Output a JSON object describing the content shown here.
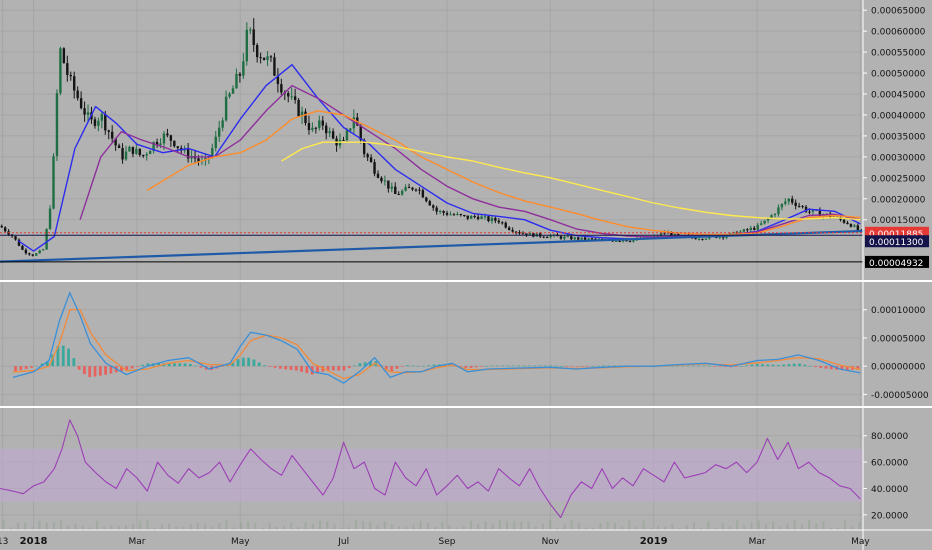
{
  "colors": {
    "background": "#b2b2b2",
    "grid": "#a6a6a6",
    "axis_text": "#141414",
    "candle_up": "#1f6e43",
    "candle_down": "#141414",
    "ma_fast": "#2c2cf0",
    "ma_mid": "#8e2f9c",
    "ma_slow": "#ff8c2a",
    "ma_long": "#ffe94d",
    "trendline": "#1e5aa8",
    "macd_line": "#3a8fd8",
    "signal_line": "#f08a3c",
    "hist_up": "#26a69a",
    "hist_down": "#ef5350",
    "rsi_line": "#9b3fb5",
    "rsi_band": "#c2a8d6",
    "price_tag_red": "#e53935",
    "price_tag_navy": "#14144a",
    "price_tag_black": "#000000"
  },
  "chart_data": [
    {
      "type": "line",
      "panel": "price",
      "note_style": "candlestick with moving averages",
      "ylim": [
        3e-05,
        0.00066
      ],
      "y_ticks": [
        "0.00065000",
        "0.00060000",
        "0.00055000",
        "0.00050000",
        "0.00045000",
        "0.00040000",
        "0.00035000",
        "0.00030000",
        "0.00025000",
        "0.00020000",
        "0.00015000"
      ],
      "y_tick_values": [
        0.00065,
        0.0006,
        0.00055,
        0.0005,
        0.00045,
        0.0004,
        0.00035,
        0.0003,
        0.00025,
        0.0002,
        0.00015
      ],
      "x_ticks": [
        "13",
        "2018",
        "Mar",
        "May",
        "Jul",
        "Sep",
        "Nov",
        "2019",
        "Mar",
        "May"
      ],
      "x_tick_months": [
        -0.6,
        0,
        2,
        4,
        6,
        8,
        10,
        12,
        14,
        16
      ],
      "x_range_months": [
        -0.65,
        16.05
      ],
      "grid": true,
      "close_series": {
        "months": [
          -0.65,
          -0.4,
          -0.2,
          0,
          0.2,
          0.35,
          0.5,
          0.7,
          0.9,
          1.1,
          1.3,
          1.5,
          1.7,
          1.9,
          2.1,
          2.3,
          2.5,
          2.7,
          2.9,
          3.1,
          3.3,
          3.5,
          3.7,
          3.85,
          4.0,
          4.15,
          4.3,
          4.45,
          4.6,
          4.8,
          5.0,
          5.2,
          5.4,
          5.6,
          5.8,
          6.0,
          6.2,
          6.4,
          6.6,
          6.8,
          7.0,
          7.2,
          7.4,
          7.6,
          7.8,
          8.0,
          8.2,
          8.4,
          8.6,
          8.8,
          9.0,
          9.2,
          9.4,
          9.6,
          9.8,
          10.0,
          10.2,
          10.4,
          10.6,
          10.8,
          11.0,
          11.2,
          11.4,
          11.6,
          11.8,
          12.0,
          12.2,
          12.4,
          12.6,
          12.8,
          13.0,
          13.2,
          13.4,
          13.6,
          13.8,
          14.0,
          14.2,
          14.4,
          14.6,
          14.8,
          15.0,
          15.2,
          15.4,
          15.6,
          15.8,
          16.0
        ],
        "values": [
          0.000135,
          0.00011,
          7.5e-05,
          6.5e-05,
          8e-05,
          0.00021,
          0.00056,
          0.00048,
          0.00043,
          0.00038,
          0.0004,
          0.00035,
          0.0003,
          0.00032,
          0.0003,
          0.00033,
          0.00035,
          0.00034,
          0.00031,
          0.0003,
          0.00028,
          0.00033,
          0.00042,
          0.00046,
          0.0005,
          0.0006,
          0.00056,
          0.00054,
          0.00052,
          0.00047,
          0.00043,
          0.0004,
          0.00036,
          0.00038,
          0.00034,
          0.00033,
          0.0004,
          0.00031,
          0.00027,
          0.00024,
          0.00021,
          0.00022,
          0.00023,
          0.0002,
          0.00017,
          0.000165,
          0.00016,
          0.000155,
          0.000158,
          0.00015,
          0.000148,
          0.00013,
          0.00012,
          0.000115,
          0.000112,
          0.000112,
          0.000108,
          0.000106,
          0.000104,
          0.000103,
          0.000102,
          0.000101,
          0.000102,
          0.000101,
          0.000104,
          0.000108,
          0.00012,
          0.000112,
          0.000109,
          0.000107,
          0.000108,
          0.00011,
          0.000112,
          0.000118,
          0.000125,
          0.000132,
          0.00015,
          0.000175,
          0.0002,
          0.000185,
          0.00017,
          0.000165,
          0.00016,
          0.00015,
          0.00014,
          0.00012
        ]
      },
      "moving_averages": [
        {
          "key": "ma_fast",
          "months": [
            -0.3,
            0.0,
            0.4,
            0.8,
            1.2,
            1.6,
            2.0,
            2.5,
            3.0,
            3.5,
            4.0,
            4.5,
            5.0,
            5.5,
            6.0,
            6.5,
            7.0,
            7.5,
            8.0,
            8.5,
            9.0,
            9.5,
            10.0,
            10.5,
            11.0,
            11.5,
            12.0,
            12.5,
            13.0,
            13.5,
            14.0,
            14.5,
            15.0,
            15.5,
            16.0
          ],
          "values": [
            0.0001,
            7.5e-05,
            0.00011,
            0.00032,
            0.00042,
            0.00038,
            0.00033,
            0.00031,
            0.00032,
            0.0003,
            0.00039,
            0.00047,
            0.00052,
            0.00044,
            0.00037,
            0.00033,
            0.00027,
            0.00023,
            0.00019,
            0.000165,
            0.000158,
            0.00015,
            0.000125,
            0.000112,
            0.000107,
            0.000104,
            0.000105,
            0.00011,
            0.00011,
            0.000114,
            0.000122,
            0.000148,
            0.000175,
            0.00017,
            0.00014
          ]
        },
        {
          "key": "ma_mid",
          "months": [
            0.9,
            1.3,
            1.7,
            2.1,
            2.6,
            3.0,
            3.5,
            4.0,
            4.5,
            5.0,
            5.5,
            6.0,
            6.5,
            7.0,
            7.5,
            8.0,
            8.5,
            9.0,
            9.5,
            10.0,
            10.5,
            11.0,
            11.5,
            12.0,
            12.5,
            13.0,
            13.5,
            14.0,
            14.5,
            15.0,
            15.5,
            16.0
          ],
          "values": [
            0.00015,
            0.0003,
            0.00036,
            0.00034,
            0.00032,
            0.0003,
            0.0003,
            0.00034,
            0.00041,
            0.00047,
            0.00044,
            0.0004,
            0.00036,
            0.00032,
            0.00027,
            0.00023,
            0.0002,
            0.00018,
            0.00017,
            0.00015,
            0.000128,
            0.000117,
            0.000111,
            0.000109,
            0.00011,
            0.000111,
            0.000113,
            0.000121,
            0.00014,
            0.00016,
            0.000163,
            0.00015
          ]
        },
        {
          "key": "ma_slow",
          "months": [
            2.2,
            2.6,
            3.0,
            3.5,
            4.0,
            4.5,
            5.0,
            5.5,
            6.0,
            6.5,
            7.0,
            7.5,
            8.0,
            8.5,
            9.0,
            9.5,
            10.0,
            10.5,
            11.0,
            11.5,
            12.0,
            12.5,
            13.0,
            13.5,
            14.0,
            14.5,
            15.0,
            15.5,
            16.0
          ],
          "values": [
            0.00022,
            0.00025,
            0.00028,
            0.0003,
            0.00031,
            0.00034,
            0.00039,
            0.00041,
            0.0004,
            0.00037,
            0.00034,
            0.0003,
            0.00027,
            0.00024,
            0.000215,
            0.000195,
            0.00018,
            0.000165,
            0.000148,
            0.000133,
            0.000124,
            0.000118,
            0.000115,
            0.000115,
            0.000118,
            0.000135,
            0.000155,
            0.00016,
            0.000155
          ]
        },
        {
          "key": "ma_long",
          "months": [
            4.8,
            5.2,
            5.6,
            6.0,
            6.4,
            6.8,
            7.2,
            7.6,
            8.0,
            8.5,
            9.0,
            9.5,
            10.0,
            10.5,
            11.0,
            11.5,
            12.0,
            12.5,
            13.0,
            13.5,
            14.0,
            14.5,
            15.0,
            15.5,
            16.0
          ],
          "values": [
            0.00029,
            0.00032,
            0.000335,
            0.000335,
            0.000335,
            0.00033,
            0.00032,
            0.00031,
            0.0003,
            0.00029,
            0.000275,
            0.000262,
            0.00025,
            0.000235,
            0.00022,
            0.000205,
            0.00019,
            0.000178,
            0.000168,
            0.00016,
            0.000155,
            0.000152,
            0.000152,
            0.000155,
            0.00015
          ]
        }
      ],
      "trendline": {
        "months": [
          -0.65,
          16.05
        ],
        "values": [
          5e-05,
          0.000123
        ]
      },
      "horizontal_levels": [
        {
          "value": 0.00011885,
          "label": "0.00011885",
          "style": "price_tag_red"
        },
        {
          "value": 0.000113,
          "label": "0.00011300",
          "style": "price_tag_navy"
        },
        {
          "value": 4.932e-05,
          "label": "0.00004932",
          "style": "price_tag_black"
        }
      ]
    },
    {
      "type": "line",
      "panel": "macd",
      "ylim": [
        -6e-05,
        0.000135
      ],
      "y_ticks": [
        "0.00010000",
        "0.00005000",
        "0.00000000",
        "-0.00005000"
      ],
      "y_tick_values": [
        0.0001,
        5e-05,
        0,
        -5e-05
      ],
      "grid": true,
      "macd": {
        "months": [
          -0.4,
          0,
          0.3,
          0.5,
          0.7,
          0.9,
          1.1,
          1.4,
          1.8,
          2.2,
          2.6,
          3.0,
          3.4,
          3.8,
          4.0,
          4.2,
          4.5,
          4.8,
          5.1,
          5.4,
          5.7,
          6.0,
          6.3,
          6.6,
          6.9,
          7.2,
          7.5,
          7.8,
          8.1,
          8.4,
          8.8,
          9.2,
          9.6,
          10.0,
          10.5,
          11.0,
          11.5,
          12.0,
          12.5,
          13.0,
          13.5,
          14.0,
          14.4,
          14.8,
          15.2,
          15.6,
          16.0
        ],
        "values": [
          -2e-05,
          -1e-05,
          1e-05,
          8e-05,
          0.00013,
          9e-05,
          4e-05,
          5e-06,
          -1.5e-05,
          0.0,
          1e-05,
          1.5e-05,
          -5e-06,
          5e-06,
          3.5e-05,
          6e-05,
          5.5e-05,
          4.5e-05,
          3e-05,
          -1e-05,
          -1.5e-05,
          -3e-05,
          -1e-05,
          1.5e-05,
          -2e-05,
          -1e-05,
          -1e-05,
          0.0,
          5e-06,
          -1e-05,
          -5e-06,
          -4e-06,
          -3e-06,
          -2e-06,
          -5e-06,
          -2e-06,
          0.0,
          0.0,
          3e-06,
          5e-06,
          0.0,
          1e-05,
          1.2e-05,
          2e-05,
          1e-05,
          -5e-06,
          -1.2e-05
        ]
      },
      "signal": {
        "months": [
          -0.4,
          0,
          0.3,
          0.5,
          0.7,
          0.9,
          1.1,
          1.4,
          1.8,
          2.2,
          2.6,
          3.0,
          3.4,
          3.8,
          4.0,
          4.2,
          4.5,
          4.8,
          5.1,
          5.4,
          5.7,
          6.0,
          6.3,
          6.6,
          6.9,
          7.2,
          7.5,
          7.8,
          8.1,
          8.4,
          8.8,
          9.2,
          9.6,
          10.0,
          10.5,
          11.0,
          11.5,
          12.0,
          12.5,
          13.0,
          13.5,
          14.0,
          14.4,
          14.8,
          15.2,
          15.6,
          16.0
        ],
        "values": [
          -1e-05,
          -8e-06,
          0.0,
          4e-05,
          0.0001,
          0.0001,
          6e-05,
          2e-05,
          -8e-06,
          -5e-06,
          5e-06,
          1e-05,
          3e-06,
          2e-06,
          2e-05,
          4.5e-05,
          5.5e-05,
          5e-05,
          3.8e-05,
          5e-06,
          -8e-06,
          -2.2e-05,
          -1.5e-05,
          5e-06,
          -1e-05,
          -1.2e-05,
          -1e-05,
          -3e-06,
          2e-06,
          -6e-06,
          -6e-06,
          -5e-06,
          -4e-06,
          -3e-06,
          -4e-06,
          -3e-06,
          -1e-06,
          0.0,
          2e-06,
          4e-06,
          2e-06,
          6e-06,
          1e-05,
          1.5e-05,
          1.3e-05,
          2e-06,
          -6e-06
        ]
      }
    },
    {
      "type": "line",
      "panel": "rsi",
      "ylim": [
        10,
        98
      ],
      "y_ticks": [
        "80.0000",
        "60.0000",
        "40.0000",
        "20.0000"
      ],
      "y_tick_values": [
        80,
        60,
        40,
        20
      ],
      "band": [
        30,
        70
      ],
      "grid": true,
      "rsi": {
        "months": [
          -0.65,
          -0.4,
          -0.2,
          0,
          0.2,
          0.4,
          0.55,
          0.7,
          0.85,
          1.0,
          1.2,
          1.4,
          1.6,
          1.8,
          2.0,
          2.2,
          2.4,
          2.6,
          2.8,
          3.0,
          3.2,
          3.4,
          3.6,
          3.8,
          4.0,
          4.2,
          4.4,
          4.6,
          4.8,
          5.0,
          5.2,
          5.4,
          5.6,
          5.8,
          6.0,
          6.2,
          6.4,
          6.6,
          6.8,
          7.0,
          7.2,
          7.4,
          7.6,
          7.8,
          8.0,
          8.2,
          8.4,
          8.6,
          8.8,
          9.0,
          9.2,
          9.4,
          9.6,
          9.8,
          10.0,
          10.2,
          10.4,
          10.6,
          10.8,
          11.0,
          11.2,
          11.4,
          11.6,
          11.8,
          12.0,
          12.2,
          12.4,
          12.6,
          12.8,
          13.0,
          13.2,
          13.4,
          13.6,
          13.8,
          14.0,
          14.2,
          14.4,
          14.6,
          14.8,
          15.0,
          15.2,
          15.4,
          15.6,
          15.8,
          16.0
        ],
        "values": [
          40,
          38,
          36,
          42,
          45,
          55,
          70,
          92,
          80,
          60,
          52,
          45,
          40,
          55,
          48,
          38,
          60,
          50,
          44,
          55,
          48,
          52,
          60,
          45,
          58,
          70,
          62,
          55,
          50,
          65,
          55,
          45,
          35,
          48,
          75,
          55,
          60,
          40,
          35,
          60,
          48,
          42,
          55,
          35,
          42,
          50,
          40,
          45,
          38,
          55,
          48,
          42,
          55,
          40,
          28,
          18,
          35,
          45,
          40,
          55,
          40,
          48,
          42,
          55,
          50,
          45,
          60,
          48,
          50,
          52,
          58,
          55,
          60,
          52,
          60,
          78,
          62,
          75,
          55,
          60,
          52,
          48,
          42,
          40,
          32
        ]
      }
    }
  ]
}
